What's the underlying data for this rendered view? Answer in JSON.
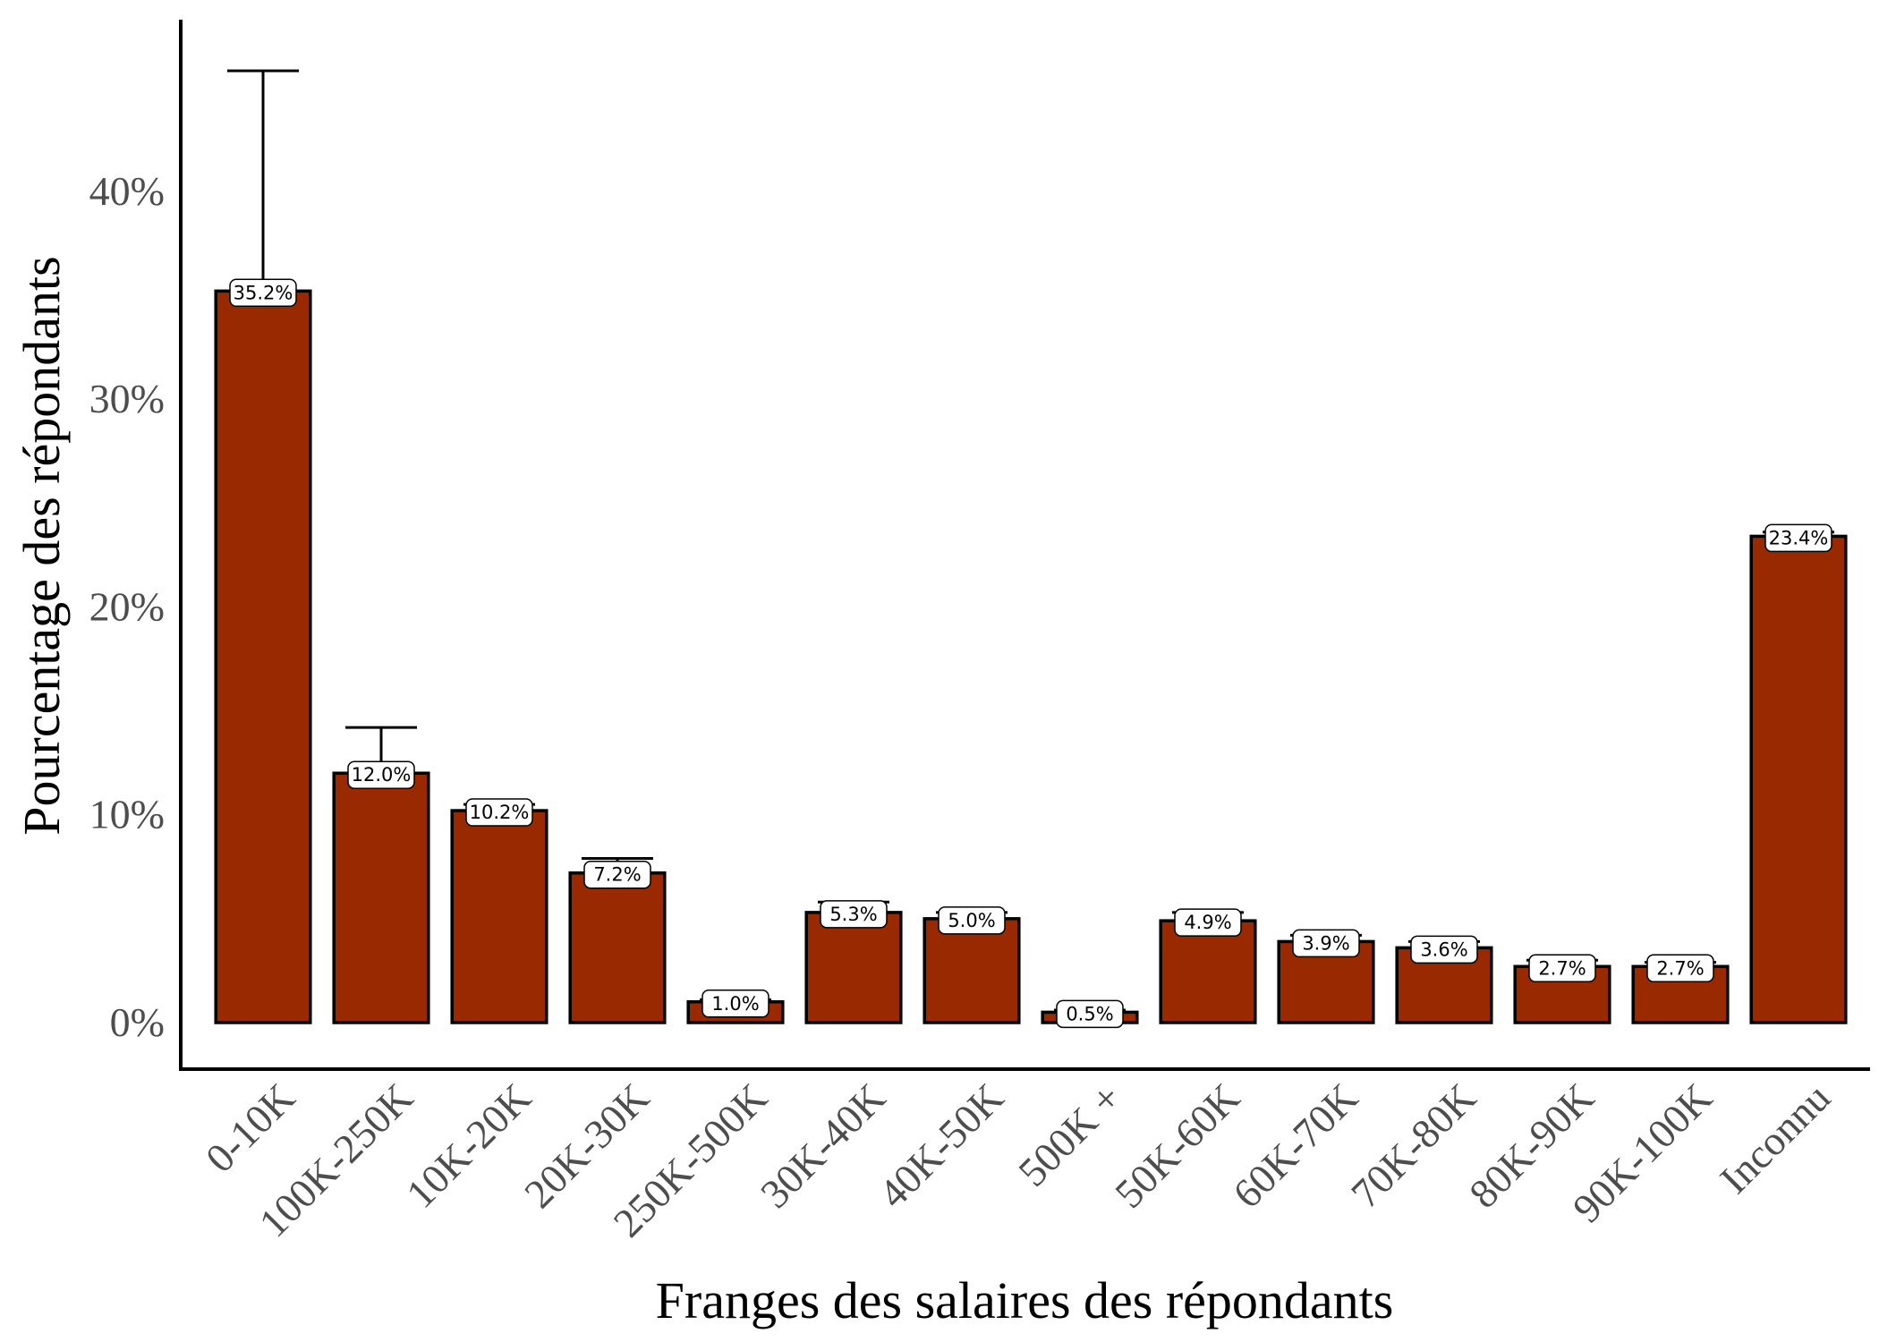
{
  "chart_data": {
    "type": "bar",
    "title": "",
    "xlabel": "Franges des salaires des répondants",
    "ylabel": "Pourcentage des répondants",
    "ylim": [
      0,
      48.8
    ],
    "yticks": [
      0,
      10,
      20,
      30,
      40
    ],
    "ytick_labels": [
      "0%",
      "10%",
      "20%",
      "30%",
      "40%"
    ],
    "categories": [
      "0-10K",
      "100K-250K",
      "10K-20K",
      "20K-30K",
      "250K-500K",
      "30K-40K",
      "40K-50K",
      "500K +",
      "50K-60K",
      "60K-70K",
      "70K-80K",
      "80K-90K",
      "90K-100K",
      "Inconnu"
    ],
    "values": [
      35.2,
      12.0,
      10.2,
      7.2,
      1.0,
      5.3,
      5.0,
      0.5,
      4.9,
      3.9,
      3.6,
      2.7,
      2.7,
      23.4
    ],
    "error_upper": [
      45.8,
      14.2,
      10.5,
      7.9,
      1.1,
      5.8,
      5.3,
      0.6,
      5.3,
      4.2,
      3.9,
      3.0,
      2.9,
      23.6
    ],
    "error_lower": [
      35.2,
      12.0,
      10.2,
      7.2,
      1.0,
      5.3,
      5.0,
      0.5,
      4.9,
      3.9,
      3.6,
      2.7,
      2.7,
      23.4
    ],
    "data_labels": [
      "35.2%",
      "12.0%",
      "10.2%",
      "7.2%",
      "1.0%",
      "5.3%",
      "5.0%",
      "0.5%",
      "4.9%",
      "3.9%",
      "3.6%",
      "2.7%",
      "2.7%",
      "23.4%"
    ],
    "bar_color": "#992900",
    "bar_edge_color": "#000000",
    "grid": false,
    "legend": "none"
  }
}
